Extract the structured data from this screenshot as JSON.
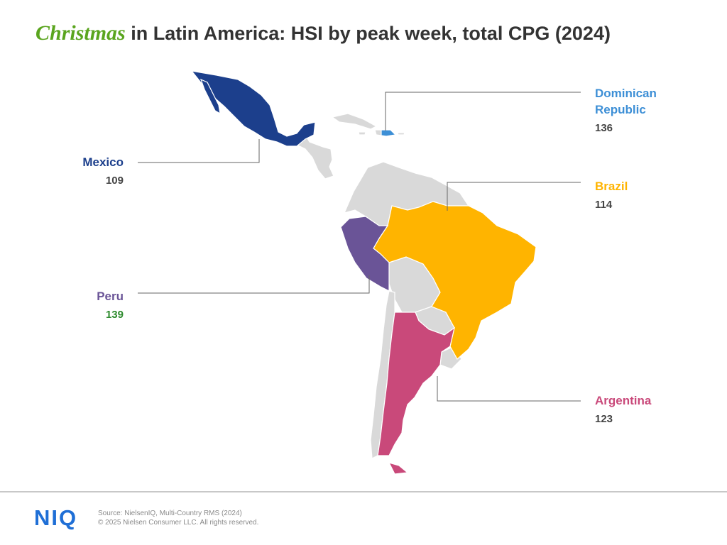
{
  "title": {
    "accent": "Christmas",
    "rest": " in Latin America: HSI by peak week, total CPG (2024)"
  },
  "colors": {
    "title_accent": "#5aa51e",
    "mexico": "#1c3f8c",
    "dominican_republic": "#3d8fd6",
    "brazil": "#ffb400",
    "peru": "#6a5497",
    "argentina": "#c9497a",
    "neutral_country": "#d9d9d9",
    "peru_value": "#2e8b2e",
    "leader_line": "#666666"
  },
  "countries": {
    "mexico": {
      "name": "Mexico",
      "value": "109"
    },
    "dominican_republic": {
      "name_line1": "Dominican",
      "name_line2": "Republic",
      "value": "136"
    },
    "brazil": {
      "name": "Brazil",
      "value": "114"
    },
    "peru": {
      "name": "Peru",
      "value": "139"
    },
    "argentina": {
      "name": "Argentina",
      "value": "123"
    }
  },
  "footer": {
    "logo": "NIQ",
    "source": "Source: NielsenIQ, Multi-Country RMS (2024)",
    "copyright": "© 2025 Nielsen Consumer LLC. All rights reserved."
  }
}
